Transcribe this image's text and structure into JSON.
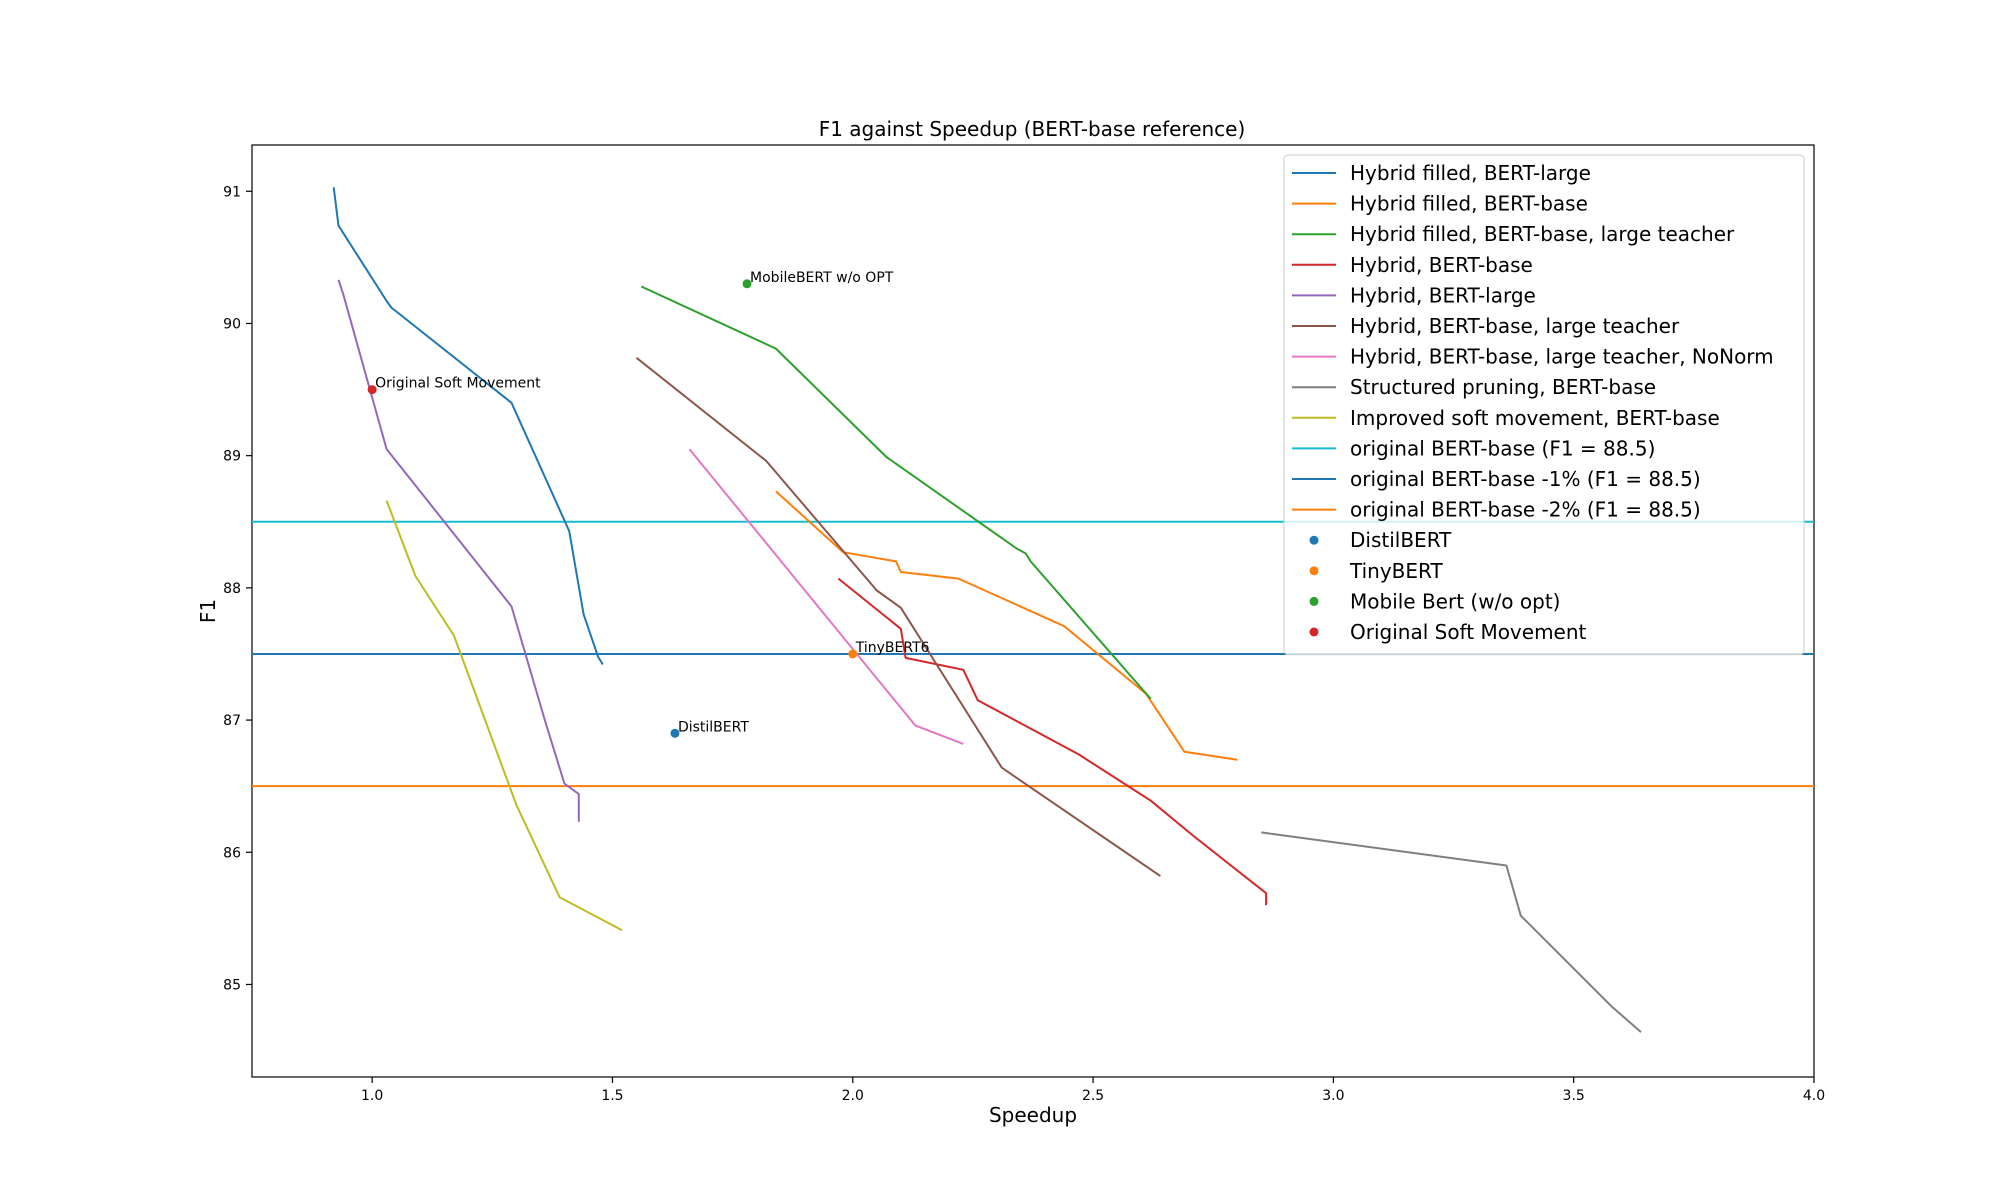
{
  "chart_data": {
    "type": "line",
    "title": "F1 against Speedup (BERT-base reference)",
    "xlabel": "Speedup",
    "ylabel": "F1",
    "xlim": [
      0.75,
      4.0
    ],
    "ylim": [
      84.3,
      91.35
    ],
    "xticks": [
      1.0,
      1.5,
      2.0,
      2.5,
      3.0,
      3.5,
      4.0
    ],
    "xtick_labels": [
      "1.0",
      "1.5",
      "2.0",
      "2.5",
      "3.0",
      "3.5",
      "4.0"
    ],
    "yticks": [
      85,
      86,
      87,
      88,
      89,
      90,
      91
    ],
    "ytick_labels": [
      "85",
      "86",
      "87",
      "88",
      "89",
      "90",
      "91"
    ],
    "grid": false,
    "legend_position": "top-right",
    "series": [
      {
        "name": "Hybrid filled, BERT-large",
        "color": "#1f77b4",
        "x": [
          0.92,
          0.93,
          1.03,
          1.04,
          1.29,
          1.41,
          1.44,
          1.47,
          1.48
        ],
        "y": [
          91.03,
          90.74,
          90.17,
          90.12,
          89.4,
          88.43,
          87.8,
          87.48,
          87.42
        ]
      },
      {
        "name": "Hybrid filled, BERT-base",
        "color": "#ff7f0e",
        "x": [
          1.84,
          1.98,
          2.09,
          2.1,
          2.22,
          2.44,
          2.61,
          2.69,
          2.8
        ],
        "y": [
          88.73,
          88.27,
          88.2,
          88.12,
          88.07,
          87.71,
          87.2,
          86.76,
          86.7
        ]
      },
      {
        "name": "Hybrid filled, BERT-base, large teacher",
        "color": "#2ca02c",
        "x": [
          1.56,
          1.84,
          2.07,
          2.34,
          2.36,
          2.37,
          2.62
        ],
        "y": [
          90.28,
          89.81,
          88.99,
          88.3,
          88.26,
          88.2,
          87.16
        ]
      },
      {
        "name": "Hybrid, BERT-base",
        "color": "#d62728",
        "x": [
          1.97,
          2.1,
          2.11,
          2.23,
          2.26,
          2.47,
          2.62,
          2.69,
          2.71,
          2.86,
          2.86
        ],
        "y": [
          88.07,
          87.69,
          87.47,
          87.38,
          87.15,
          86.74,
          86.39,
          86.18,
          86.12,
          85.69,
          85.6
        ]
      },
      {
        "name": "Hybrid, BERT-large",
        "color": "#9467bd",
        "x": [
          0.93,
          0.94,
          1.03,
          1.29,
          1.36,
          1.4,
          1.43,
          1.43
        ],
        "y": [
          90.33,
          90.22,
          89.05,
          87.86,
          86.99,
          86.52,
          86.44,
          86.23
        ]
      },
      {
        "name": "Hybrid, BERT-base, large teacher",
        "color": "#8c564b",
        "x": [
          1.55,
          1.82,
          2.05,
          2.1,
          2.31,
          2.64
        ],
        "y": [
          89.74,
          88.96,
          87.98,
          87.85,
          86.64,
          85.82
        ]
      },
      {
        "name": "Hybrid, BERT-base, large teacher, NoNorm",
        "color": "#e377c2",
        "x": [
          1.66,
          2.13,
          2.23
        ],
        "y": [
          89.05,
          86.96,
          86.82
        ]
      },
      {
        "name": "Structured pruning, BERT-base",
        "color": "#7f7f7f",
        "x": [
          2.85,
          3.36,
          3.39,
          3.58,
          3.64
        ],
        "y": [
          86.15,
          85.9,
          85.52,
          84.83,
          84.64
        ]
      },
      {
        "name": "Improved soft movement, BERT-base",
        "color": "#bcbd22",
        "x": [
          1.03,
          1.09,
          1.17,
          1.3,
          1.39,
          1.52
        ],
        "y": [
          88.66,
          88.09,
          87.64,
          86.36,
          85.66,
          85.41
        ]
      }
    ],
    "reference_lines": [
      {
        "name": "original BERT-base (F1 = 88.5)",
        "color": "#17becf",
        "y": 88.5
      },
      {
        "name": "original BERT-base -1% (F1 = 88.5)",
        "color": "#1f77b4",
        "y": 87.5
      },
      {
        "name": "original BERT-base -2% (F1 = 88.5)",
        "color": "#ff7f0e",
        "y": 86.5
      }
    ],
    "points": [
      {
        "name": "DistilBERT",
        "color": "#1f77b4",
        "x": 1.63,
        "y": 86.9,
        "annotation": "DistilBERT"
      },
      {
        "name": "TinyBERT",
        "color": "#ff7f0e",
        "x": 2.0,
        "y": 87.5,
        "annotation": "TinyBERT6"
      },
      {
        "name": "Mobile Bert (w/o opt)",
        "color": "#2ca02c",
        "x": 1.78,
        "y": 90.3,
        "annotation": "MobileBERT w/o OPT"
      },
      {
        "name": "Original Soft Movement",
        "color": "#d62728",
        "x": 1.0,
        "y": 89.5,
        "annotation": "Original Soft Movement"
      }
    ]
  }
}
